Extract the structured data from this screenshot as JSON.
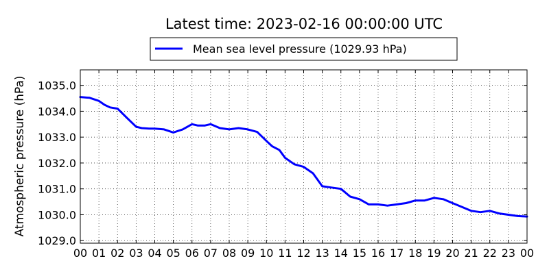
{
  "chart_data": {
    "type": "line",
    "title": "Latest time: 2023-02-16 00:00:00 UTC",
    "ylabel": "Atmospheric pressure (hPa)",
    "xlabel": "",
    "legend": {
      "placement": "top-center",
      "entries": [
        "Mean sea level pressure (1029.93 hPa)"
      ]
    },
    "grid": true,
    "xlim": [
      0,
      24
    ],
    "ylim": [
      1028.9,
      1035.6
    ],
    "x_ticks": [
      0,
      1,
      2,
      3,
      4,
      5,
      6,
      7,
      8,
      9,
      10,
      11,
      12,
      13,
      14,
      15,
      16,
      17,
      18,
      19,
      20,
      21,
      22,
      23,
      24
    ],
    "x_tick_labels": [
      "00",
      "01",
      "02",
      "03",
      "04",
      "05",
      "06",
      "07",
      "08",
      "09",
      "10",
      "11",
      "12",
      "13",
      "14",
      "15",
      "16",
      "17",
      "18",
      "19",
      "20",
      "21",
      "22",
      "23",
      "00"
    ],
    "y_ticks": [
      1029.0,
      1030.0,
      1031.0,
      1032.0,
      1033.0,
      1034.0,
      1035.0
    ],
    "y_tick_labels": [
      "1029.0",
      "1030.0",
      "1031.0",
      "1032.0",
      "1033.0",
      "1034.0",
      "1035.0"
    ],
    "series": [
      {
        "name": "Mean sea level pressure (1029.93 hPa)",
        "color": "#0000ff",
        "x": [
          0,
          0.5,
          1,
          1.3,
          1.6,
          2,
          2.5,
          3,
          3.3,
          3.7,
          4,
          4.5,
          5,
          5.5,
          6,
          6.3,
          6.7,
          7,
          7.5,
          8,
          8.5,
          9,
          9.5,
          10,
          10.3,
          10.7,
          11,
          11.5,
          12,
          12.5,
          13,
          13.5,
          14,
          14.5,
          15,
          15.5,
          16,
          16.5,
          17,
          17.5,
          18,
          18.5,
          19,
          19.5,
          20,
          20.5,
          21,
          21.5,
          22,
          22.5,
          23,
          23.5,
          24
        ],
        "y": [
          1034.55,
          1034.52,
          1034.4,
          1034.25,
          1034.15,
          1034.1,
          1033.75,
          1033.4,
          1033.35,
          1033.33,
          1033.33,
          1033.3,
          1033.18,
          1033.3,
          1033.5,
          1033.45,
          1033.45,
          1033.5,
          1033.35,
          1033.3,
          1033.35,
          1033.3,
          1033.2,
          1032.85,
          1032.65,
          1032.5,
          1032.2,
          1031.95,
          1031.85,
          1031.6,
          1031.1,
          1031.05,
          1031.0,
          1030.7,
          1030.6,
          1030.4,
          1030.4,
          1030.35,
          1030.4,
          1030.45,
          1030.55,
          1030.55,
          1030.65,
          1030.6,
          1030.45,
          1030.3,
          1030.15,
          1030.1,
          1030.15,
          1030.05,
          1030.0,
          1029.95,
          1029.93
        ]
      }
    ]
  }
}
